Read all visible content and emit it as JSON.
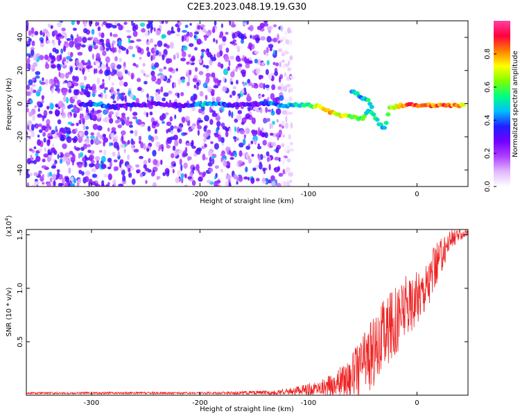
{
  "title": "C2E3.2023.048.19.19.G30",
  "chart_data": [
    {
      "type": "heatmap",
      "xlabel": "Height of straight line (km)",
      "ylabel": "Frequency (Hz)",
      "xlim": [
        -360,
        47
      ],
      "ylim": [
        -50,
        50
      ],
      "xticks": [
        -300,
        -200,
        -100,
        0
      ],
      "xtick_labels": [
        "-300",
        "-200",
        "-100",
        "0"
      ],
      "yticks": [
        -40,
        -20,
        0,
        20,
        40
      ],
      "ytick_labels": [
        "-40",
        "-20",
        "0",
        "20",
        "40"
      ],
      "colorbar": {
        "label": "Normalized spectral amplitude",
        "range": [
          0,
          1
        ],
        "ticks": [
          0,
          0.2,
          0.4,
          0.6,
          0.8
        ],
        "tick_labels": [
          "0.0",
          "0.2",
          "0.4",
          "0.6",
          "0.8"
        ],
        "colors": [
          "#ffffff",
          "#e0b8ff",
          "#b040ff",
          "#7000ff",
          "#2020ff",
          "#00c0ff",
          "#00ff80",
          "#80ff00",
          "#ffff00",
          "#ff8000",
          "#ff0040",
          "#ff40a0"
        ]
      },
      "ridge": [
        {
          "x": -310,
          "y": -1,
          "value": 0.3
        },
        {
          "x": -295,
          "y": 0,
          "value": 0.45
        },
        {
          "x": -280,
          "y": -2,
          "value": 0.3
        },
        {
          "x": -265,
          "y": -1,
          "value": 0.3
        },
        {
          "x": -240,
          "y": 0,
          "value": 0.28
        },
        {
          "x": -215,
          "y": -1,
          "value": 0.3
        },
        {
          "x": -195,
          "y": 0,
          "value": 0.5
        },
        {
          "x": -170,
          "y": -1,
          "value": 0.3
        },
        {
          "x": -145,
          "y": 0,
          "value": 0.3
        },
        {
          "x": -135,
          "y": 0,
          "value": 0.45
        },
        {
          "x": -125,
          "y": -1,
          "value": 0.4
        },
        {
          "x": -110,
          "y": -1,
          "value": 0.5
        },
        {
          "x": -100,
          "y": -1,
          "value": 0.55
        },
        {
          "x": -90,
          "y": -2,
          "value": 0.7
        },
        {
          "x": -80,
          "y": -5,
          "value": 0.75
        },
        {
          "x": -70,
          "y": -7,
          "value": 0.7
        },
        {
          "x": -60,
          "y": -8,
          "value": 0.6
        },
        {
          "x": -50,
          "y": -9,
          "value": 0.6
        },
        {
          "x": -45,
          "y": -4,
          "value": 0.5
        },
        {
          "x": -40,
          "y": -7,
          "value": 0.55
        },
        {
          "x": -35,
          "y": -12,
          "value": 0.5
        },
        {
          "x": -30,
          "y": -15,
          "value": 0.45
        },
        {
          "x": -25,
          "y": -3,
          "value": 0.6
        },
        {
          "x": -15,
          "y": -1,
          "value": 0.8
        },
        {
          "x": -5,
          "y": -1,
          "value": 0.85
        },
        {
          "x": 5,
          "y": -1,
          "value": 0.85
        },
        {
          "x": 15,
          "y": -1,
          "value": 0.8
        },
        {
          "x": 25,
          "y": -1,
          "value": 0.85
        },
        {
          "x": 35,
          "y": -1,
          "value": 0.8
        },
        {
          "x": 45,
          "y": -1,
          "value": 0.75
        }
      ],
      "branch": [
        {
          "x": -60,
          "y": 8,
          "value": 0.45
        },
        {
          "x": -55,
          "y": 6,
          "value": 0.5
        },
        {
          "x": -50,
          "y": 3,
          "value": 0.45
        },
        {
          "x": -45,
          "y": 2,
          "value": 0.5
        },
        {
          "x": -40,
          "y": -3,
          "value": 0.45
        }
      ],
      "noise_region": {
        "x_from": -360,
        "x_to": -115,
        "y_from": -50,
        "y_to": 50
      }
    },
    {
      "type": "line",
      "xlabel": "Height of straight line (km)",
      "ylabel": "SNR (10 * v/v)",
      "scale_label": "(x10",
      "scale_exponent": "4",
      "scale_suffix": ")",
      "xlim": [
        -360,
        47
      ],
      "ylim": [
        0,
        1.55
      ],
      "xticks": [
        -300,
        -200,
        -100,
        0
      ],
      "xtick_labels": [
        "-300",
        "-200",
        "-100",
        "0"
      ],
      "yticks": [
        0.5,
        1.0,
        1.5
      ],
      "ytick_labels": [
        "0.5",
        "1.0",
        "1.5"
      ],
      "series": [
        {
          "color": "#ee2222",
          "x": [
            -360,
            -300,
            -200,
            -130,
            -110,
            -90,
            -75,
            -60,
            -50,
            -40,
            -30,
            -20,
            -10,
            0,
            10,
            20,
            30,
            40,
            47
          ],
          "y": [
            0.02,
            0.02,
            0.02,
            0.025,
            0.04,
            0.07,
            0.1,
            0.18,
            0.3,
            0.42,
            0.55,
            0.7,
            0.82,
            0.92,
            1.05,
            1.25,
            1.45,
            1.5,
            1.52
          ],
          "spread": [
            0.01,
            0.01,
            0.01,
            0.02,
            0.04,
            0.07,
            0.12,
            0.2,
            0.3,
            0.35,
            0.35,
            0.35,
            0.3,
            0.25,
            0.25,
            0.2,
            0.1,
            0.05,
            0.03
          ]
        }
      ]
    }
  ]
}
